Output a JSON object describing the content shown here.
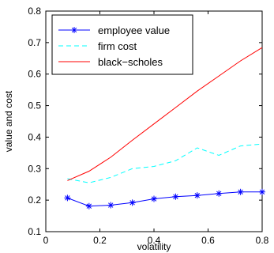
{
  "chart_data": {
    "type": "line",
    "xlabel": "volatility",
    "ylabel": "value and cost",
    "xlim": [
      0,
      0.8
    ],
    "ylim": [
      0.1,
      0.8
    ],
    "xticks": [
      0,
      0.2,
      0.4,
      0.6,
      0.8
    ],
    "yticks": [
      0.1,
      0.2,
      0.3,
      0.4,
      0.5,
      0.6,
      0.7,
      0.8
    ],
    "grid": false,
    "legend_position": "top-left",
    "series": [
      {
        "name": "employee value",
        "color": "#0000ff",
        "line_style": "solid",
        "marker": "asterisk",
        "x": [
          0.08,
          0.16,
          0.24,
          0.32,
          0.4,
          0.48,
          0.56,
          0.64,
          0.72,
          0.8
        ],
        "y": [
          0.207,
          0.181,
          0.184,
          0.192,
          0.204,
          0.211,
          0.215,
          0.221,
          0.226,
          0.226
        ]
      },
      {
        "name": "firm cost",
        "color": "#00ffff",
        "line_style": "dashed",
        "marker": "none",
        "x": [
          0.08,
          0.16,
          0.24,
          0.32,
          0.4,
          0.48,
          0.56,
          0.64,
          0.72,
          0.8
        ],
        "y": [
          0.268,
          0.255,
          0.272,
          0.3,
          0.307,
          0.325,
          0.366,
          0.342,
          0.372,
          0.378
        ]
      },
      {
        "name": "black−scholes",
        "color": "#ff0000",
        "line_style": "solid",
        "marker": "none",
        "x": [
          0.08,
          0.16,
          0.24,
          0.32,
          0.4,
          0.48,
          0.56,
          0.64,
          0.72,
          0.8
        ],
        "y": [
          0.262,
          0.292,
          0.336,
          0.39,
          0.442,
          0.494,
          0.546,
          0.594,
          0.642,
          0.684
        ]
      }
    ]
  }
}
